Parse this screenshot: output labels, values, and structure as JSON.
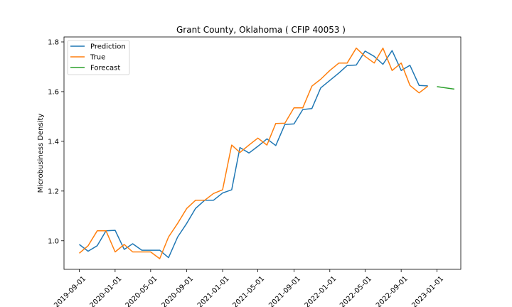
{
  "chart_data": {
    "type": "line",
    "title": "Grant County, Oklahoma ( CFIP 40053 )",
    "xlabel": "",
    "ylabel": "Microbusiness Density",
    "x_ticks": [
      "2019-09-01",
      "2020-01-01",
      "2020-05-01",
      "2020-09-01",
      "2021-01-01",
      "2021-05-01",
      "2021-09-01",
      "2022-01-01",
      "2022-05-01",
      "2022-09-01",
      "2023-01-01"
    ],
    "y_ticks": [
      1.0,
      1.2,
      1.4,
      1.6,
      1.8
    ],
    "xlim": [
      "2019-07-11",
      "2023-03-23"
    ],
    "ylim": [
      0.885,
      1.82
    ],
    "grid": false,
    "legend_position": "upper left",
    "series": [
      {
        "name": "Prediction",
        "color": "#1f77b4",
        "x": [
          "2019-09-01",
          "2019-10-01",
          "2019-11-01",
          "2019-12-01",
          "2020-01-01",
          "2020-02-01",
          "2020-03-01",
          "2020-04-01",
          "2020-05-01",
          "2020-06-01",
          "2020-07-01",
          "2020-08-01",
          "2020-09-01",
          "2020-10-01",
          "2020-11-01",
          "2020-12-01",
          "2021-01-01",
          "2021-02-01",
          "2021-03-01",
          "2021-04-01",
          "2021-05-01",
          "2021-06-01",
          "2021-07-01",
          "2021-08-01",
          "2021-09-01",
          "2021-10-01",
          "2021-11-01",
          "2021-12-01",
          "2022-01-01",
          "2022-02-01",
          "2022-03-01",
          "2022-04-01",
          "2022-05-01",
          "2022-06-01",
          "2022-07-01",
          "2022-08-01",
          "2022-09-01",
          "2022-10-01",
          "2022-11-01",
          "2022-12-01"
        ],
        "values": [
          0.985,
          0.958,
          0.98,
          1.04,
          1.042,
          0.965,
          0.988,
          0.962,
          0.962,
          0.962,
          0.932,
          1.015,
          1.07,
          1.13,
          1.163,
          1.163,
          1.192,
          1.205,
          1.375,
          1.353,
          1.38,
          1.41,
          1.383,
          1.468,
          1.47,
          1.528,
          1.532,
          1.615,
          1.645,
          1.675,
          1.705,
          1.707,
          1.763,
          1.742,
          1.71,
          1.765,
          1.685,
          1.706,
          1.625,
          1.623
        ]
      },
      {
        "name": "True",
        "color": "#ff7f0e",
        "x": [
          "2019-09-01",
          "2019-10-01",
          "2019-11-01",
          "2019-12-01",
          "2020-01-01",
          "2020-02-01",
          "2020-03-01",
          "2020-04-01",
          "2020-05-01",
          "2020-06-01",
          "2020-07-01",
          "2020-08-01",
          "2020-09-01",
          "2020-10-01",
          "2020-11-01",
          "2020-12-01",
          "2021-01-01",
          "2021-02-01",
          "2021-03-01",
          "2021-04-01",
          "2021-05-01",
          "2021-06-01",
          "2021-07-01",
          "2021-08-01",
          "2021-09-01",
          "2021-10-01",
          "2021-11-01",
          "2021-12-01",
          "2022-01-01",
          "2022-02-01",
          "2022-03-01",
          "2022-04-01",
          "2022-05-01",
          "2022-06-01",
          "2022-07-01",
          "2022-08-01",
          "2022-09-01",
          "2022-10-01",
          "2022-11-01",
          "2022-12-01"
        ],
        "values": [
          0.95,
          0.98,
          1.04,
          1.04,
          0.955,
          0.985,
          0.955,
          0.955,
          0.955,
          0.928,
          1.015,
          1.07,
          1.13,
          1.163,
          1.163,
          1.19,
          1.205,
          1.385,
          1.355,
          1.385,
          1.413,
          1.385,
          1.472,
          1.473,
          1.535,
          1.535,
          1.622,
          1.65,
          1.685,
          1.715,
          1.715,
          1.775,
          1.742,
          1.715,
          1.775,
          1.685,
          1.715,
          1.625,
          1.595,
          1.622
        ]
      },
      {
        "name": "Forecast",
        "color": "#2ca02c",
        "x": [
          "2023-01-01",
          "2023-02-01",
          "2023-03-01"
        ],
        "values": [
          1.62,
          1.615,
          1.61
        ]
      }
    ]
  }
}
